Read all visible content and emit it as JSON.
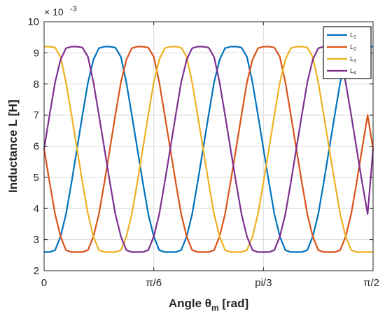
{
  "chart_data": {
    "type": "line",
    "xlabel": "Angle θ",
    "xlabel_sub": "m",
    "xlabel_unit": " [rad]",
    "ylabel": "Inductance L [H]",
    "y_scale_prefix": "× 10",
    "y_scale_exp": "-3",
    "xlim": [
      0,
      1.5708
    ],
    "ylim": [
      2,
      10
    ],
    "yticks": [
      2,
      3,
      4,
      5,
      6,
      7,
      8,
      9,
      10
    ],
    "xticks": [
      {
        "value": 0,
        "label": "0"
      },
      {
        "value": 0.5236,
        "label": "π/6"
      },
      {
        "value": 1.0472,
        "label": "pi/3"
      },
      {
        "value": 1.5708,
        "label": "π/2"
      }
    ],
    "grid": true,
    "legend_position": "top-right",
    "series": [
      {
        "name": "L",
        "sub": "1",
        "color": "#0072BD",
        "x": [
          0,
          0.0262,
          0.0524,
          0.0785,
          0.1047,
          0.1309,
          0.1571,
          0.1833,
          0.2094,
          0.2356,
          0.2618,
          0.288,
          0.3142,
          0.3403,
          0.3665,
          0.3927,
          0.4189,
          0.4451,
          0.4712,
          0.4974,
          0.5236,
          0.5498,
          0.576,
          0.6021,
          0.6283,
          0.6545,
          0.6807,
          0.7069,
          0.733,
          0.7592,
          0.7854,
          0.8116,
          0.8378,
          0.8639,
          0.8901,
          0.9163,
          0.9425,
          0.9687,
          0.9948,
          1.021,
          1.0472,
          1.0734,
          1.0996,
          1.1257,
          1.1519,
          1.1781,
          1.2043,
          1.2305,
          1.2566,
          1.2828,
          1.309,
          1.3352,
          1.3614,
          1.3875,
          1.4137,
          1.4399,
          1.4661,
          1.4923,
          1.5184,
          1.5446,
          1.5708
        ],
        "y": [
          2.6,
          2.6,
          2.66,
          3.1,
          3.82,
          4.84,
          5.92,
          7.0,
          8.05,
          8.78,
          9.15,
          9.2,
          9.2,
          9.17,
          8.87,
          8.05,
          7.0,
          5.92,
          4.84,
          3.82,
          3.1,
          2.66,
          2.6,
          2.6,
          2.6,
          2.66,
          3.1,
          3.82,
          4.84,
          5.92,
          7.0,
          8.05,
          8.78,
          9.15,
          9.2,
          9.2,
          9.17,
          8.87,
          8.05,
          7.0,
          5.92,
          4.84,
          3.82,
          3.1,
          2.66,
          2.6,
          2.6,
          2.6,
          2.66,
          3.1,
          3.82,
          4.84,
          5.92,
          7.0,
          8.05,
          8.78,
          9.15,
          9.2,
          9.2,
          9.2,
          9.2
        ]
      },
      {
        "name": "L",
        "sub": "2",
        "color": "#D95319",
        "x": [
          0,
          0.0262,
          0.0524,
          0.0785,
          0.1047,
          0.1309,
          0.1571,
          0.1833,
          0.2094,
          0.2356,
          0.2618,
          0.288,
          0.3142,
          0.3403,
          0.3665,
          0.3927,
          0.4189,
          0.4451,
          0.4712,
          0.4974,
          0.5236,
          0.5498,
          0.576,
          0.6021,
          0.6283,
          0.6545,
          0.6807,
          0.7069,
          0.733,
          0.7592,
          0.7854,
          0.8116,
          0.8378,
          0.8639,
          0.8901,
          0.9163,
          0.9425,
          0.9687,
          0.9948,
          1.021,
          1.0472,
          1.0734,
          1.0996,
          1.1257,
          1.1519,
          1.1781,
          1.2043,
          1.2305,
          1.2566,
          1.2828,
          1.309,
          1.3352,
          1.3614,
          1.3875,
          1.4137,
          1.4399,
          1.4661,
          1.4923,
          1.5184,
          1.5446,
          1.5708
        ],
        "y": [
          5.92,
          4.84,
          3.82,
          3.1,
          2.66,
          2.6,
          2.6,
          2.6,
          2.66,
          3.1,
          3.82,
          4.84,
          5.92,
          7.0,
          8.05,
          8.78,
          9.15,
          9.2,
          9.2,
          9.17,
          8.87,
          8.05,
          7.0,
          5.92,
          4.84,
          3.82,
          3.1,
          2.66,
          2.6,
          2.6,
          2.6,
          2.66,
          3.1,
          3.82,
          4.84,
          5.92,
          7.0,
          8.05,
          8.78,
          9.15,
          9.2,
          9.2,
          9.17,
          8.87,
          8.05,
          7.0,
          5.92,
          4.84,
          3.82,
          3.1,
          2.66,
          2.6,
          2.6,
          2.6,
          2.66,
          3.1,
          3.82,
          4.84,
          5.92,
          7.0,
          5.92
        ]
      },
      {
        "name": "L",
        "sub": "3",
        "color": "#EDB120",
        "x": [
          0,
          0.0262,
          0.0524,
          0.0785,
          0.1047,
          0.1309,
          0.1571,
          0.1833,
          0.2094,
          0.2356,
          0.2618,
          0.288,
          0.3142,
          0.3403,
          0.3665,
          0.3927,
          0.4189,
          0.4451,
          0.4712,
          0.4974,
          0.5236,
          0.5498,
          0.576,
          0.6021,
          0.6283,
          0.6545,
          0.6807,
          0.7069,
          0.733,
          0.7592,
          0.7854,
          0.8116,
          0.8378,
          0.8639,
          0.8901,
          0.9163,
          0.9425,
          0.9687,
          0.9948,
          1.021,
          1.0472,
          1.0734,
          1.0996,
          1.1257,
          1.1519,
          1.1781,
          1.2043,
          1.2305,
          1.2566,
          1.2828,
          1.309,
          1.3352,
          1.3614,
          1.3875,
          1.4137,
          1.4399,
          1.4661,
          1.4923,
          1.5184,
          1.5446,
          1.5708
        ],
        "y": [
          9.2,
          9.2,
          9.17,
          8.87,
          8.05,
          7.0,
          5.92,
          4.84,
          3.82,
          3.1,
          2.66,
          2.6,
          2.6,
          2.6,
          2.66,
          3.1,
          3.82,
          4.84,
          5.92,
          7.0,
          8.05,
          8.78,
          9.15,
          9.2,
          9.2,
          9.17,
          8.87,
          8.05,
          7.0,
          5.92,
          4.84,
          3.82,
          3.1,
          2.66,
          2.6,
          2.6,
          2.6,
          2.66,
          3.1,
          3.82,
          4.84,
          5.92,
          7.0,
          8.05,
          8.78,
          9.15,
          9.2,
          9.2,
          9.17,
          8.87,
          8.05,
          7.0,
          5.92,
          4.84,
          3.82,
          3.1,
          2.66,
          2.6,
          2.6,
          2.6,
          2.6
        ]
      },
      {
        "name": "L",
        "sub": "4",
        "color": "#7E2F8E",
        "x": [
          0,
          0.0262,
          0.0524,
          0.0785,
          0.1047,
          0.1309,
          0.1571,
          0.1833,
          0.2094,
          0.2356,
          0.2618,
          0.288,
          0.3142,
          0.3403,
          0.3665,
          0.3927,
          0.4189,
          0.4451,
          0.4712,
          0.4974,
          0.5236,
          0.5498,
          0.576,
          0.6021,
          0.6283,
          0.6545,
          0.6807,
          0.7069,
          0.733,
          0.7592,
          0.7854,
          0.8116,
          0.8378,
          0.8639,
          0.8901,
          0.9163,
          0.9425,
          0.9687,
          0.9948,
          1.021,
          1.0472,
          1.0734,
          1.0996,
          1.1257,
          1.1519,
          1.1781,
          1.2043,
          1.2305,
          1.2566,
          1.2828,
          1.309,
          1.3352,
          1.3614,
          1.3875,
          1.4137,
          1.4399,
          1.4661,
          1.4923,
          1.5184,
          1.5446,
          1.5708
        ],
        "y": [
          5.92,
          7.0,
          8.05,
          8.78,
          9.15,
          9.2,
          9.2,
          9.17,
          8.87,
          8.05,
          7.0,
          5.92,
          4.84,
          3.82,
          3.1,
          2.66,
          2.6,
          2.6,
          2.6,
          2.66,
          3.1,
          3.82,
          4.84,
          5.92,
          7.0,
          8.05,
          8.78,
          9.15,
          9.2,
          9.2,
          9.17,
          8.87,
          8.05,
          7.0,
          5.92,
          4.84,
          3.82,
          3.1,
          2.66,
          2.6,
          2.6,
          2.6,
          2.66,
          3.1,
          3.82,
          4.84,
          5.92,
          7.0,
          8.05,
          8.78,
          9.15,
          9.2,
          9.2,
          9.17,
          8.87,
          8.05,
          7.0,
          5.92,
          4.84,
          3.82,
          5.92
        ]
      }
    ]
  }
}
